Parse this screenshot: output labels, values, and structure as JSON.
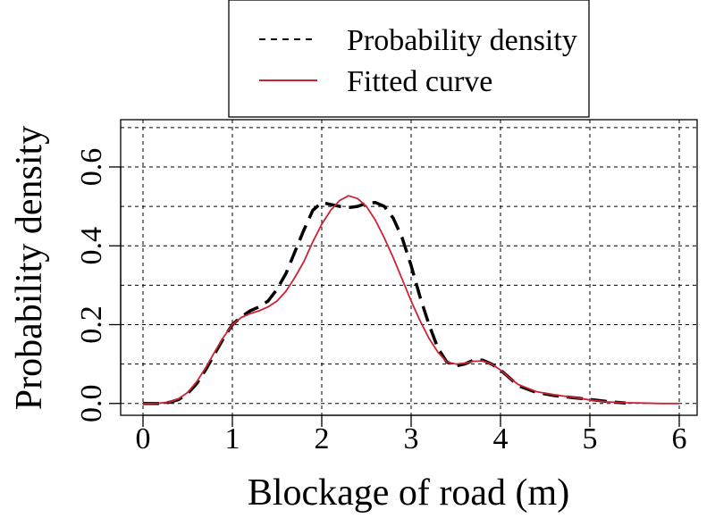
{
  "chart_data": {
    "type": "line",
    "xlabel": "Blockage of road (m)",
    "ylabel": "Probability density",
    "xlim": [
      -0.25,
      6.2
    ],
    "ylim": [
      -0.03,
      0.72
    ],
    "x_ticks": [
      0,
      1,
      2,
      3,
      4,
      5,
      6
    ],
    "x_tick_labels": [
      "0",
      "1",
      "2",
      "3",
      "4",
      "5",
      "6"
    ],
    "y_ticks": [
      0.0,
      0.2,
      0.4,
      0.6
    ],
    "y_tick_labels": [
      "0.0",
      "0.2",
      "0.4",
      "0.6"
    ],
    "grid": true,
    "grid_x": [
      0,
      1,
      2,
      3,
      4,
      5,
      6
    ],
    "grid_y": [
      0.0,
      0.1,
      0.2,
      0.3,
      0.4,
      0.5,
      0.6,
      0.7
    ],
    "legend": {
      "placement": "top-center, outside plot area"
    },
    "series": [
      {
        "name": "Probability density",
        "color": "#000000",
        "dash": "dashed",
        "x": [
          0.0,
          0.2,
          0.3,
          0.4,
          0.5,
          0.6,
          0.7,
          0.8,
          0.9,
          1.0,
          1.1,
          1.2,
          1.3,
          1.4,
          1.5,
          1.6,
          1.7,
          1.8,
          1.9,
          2.0,
          2.1,
          2.2,
          2.3,
          2.4,
          2.5,
          2.6,
          2.7,
          2.8,
          2.9,
          3.0,
          3.1,
          3.2,
          3.3,
          3.4,
          3.5,
          3.6,
          3.7,
          3.8,
          3.9,
          4.0,
          4.1,
          4.2,
          4.4,
          4.6,
          4.8,
          5.0,
          5.2,
          5.4
        ],
        "y": [
          0.0,
          0.0,
          0.003,
          0.01,
          0.025,
          0.05,
          0.085,
          0.125,
          0.165,
          0.2,
          0.22,
          0.235,
          0.245,
          0.26,
          0.29,
          0.33,
          0.385,
          0.44,
          0.49,
          0.51,
          0.505,
          0.5,
          0.497,
          0.5,
          0.508,
          0.51,
          0.5,
          0.47,
          0.42,
          0.35,
          0.27,
          0.2,
          0.14,
          0.105,
          0.095,
          0.1,
          0.11,
          0.11,
          0.1,
          0.085,
          0.065,
          0.045,
          0.028,
          0.02,
          0.015,
          0.01,
          0.005,
          0.001
        ]
      },
      {
        "name": "Fitted curve",
        "color": "#cc2233",
        "dash": "solid",
        "x": [
          0.0,
          0.2,
          0.3,
          0.4,
          0.5,
          0.6,
          0.7,
          0.8,
          0.9,
          1.0,
          1.1,
          1.2,
          1.3,
          1.4,
          1.5,
          1.6,
          1.7,
          1.8,
          1.9,
          2.0,
          2.1,
          2.2,
          2.3,
          2.4,
          2.5,
          2.6,
          2.7,
          2.8,
          2.9,
          3.0,
          3.1,
          3.2,
          3.3,
          3.4,
          3.5,
          3.6,
          3.7,
          3.8,
          3.9,
          4.0,
          4.1,
          4.2,
          4.4,
          4.6,
          4.8,
          5.0,
          5.2,
          5.4,
          5.6,
          5.8,
          6.0
        ],
        "y": [
          0.0,
          0.001,
          0.004,
          0.012,
          0.028,
          0.055,
          0.09,
          0.13,
          0.168,
          0.2,
          0.218,
          0.228,
          0.235,
          0.245,
          0.26,
          0.285,
          0.32,
          0.36,
          0.41,
          0.455,
          0.49,
          0.515,
          0.527,
          0.52,
          0.5,
          0.465,
          0.42,
          0.37,
          0.315,
          0.26,
          0.21,
          0.165,
          0.13,
          0.105,
          0.1,
          0.102,
          0.107,
          0.108,
          0.1,
          0.085,
          0.065,
          0.048,
          0.03,
          0.022,
          0.016,
          0.009,
          0.004,
          0.002,
          0.001,
          0.0,
          0.0
        ]
      }
    ]
  }
}
